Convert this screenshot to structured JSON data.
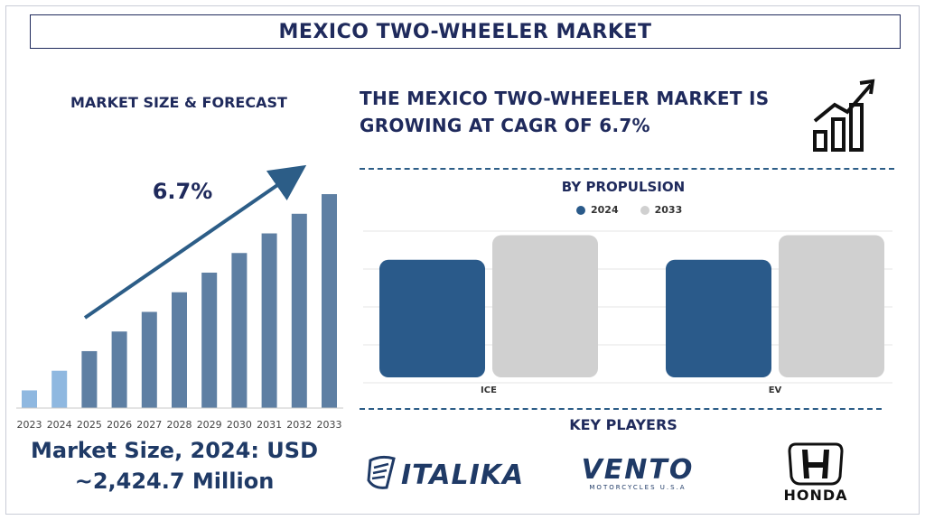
{
  "header": {
    "title": "MEXICO TWO-WHEELER MARKET"
  },
  "left_panel": {
    "subtitle": "MARKET SIZE & FORECAST",
    "cagr_label": "6.7%",
    "market_size_line1": "Market Size, 2024: USD",
    "market_size_line2": "~2,424.7 Million"
  },
  "right_panel": {
    "headline": "THE MEXICO TWO-WHEELER MARKET IS GROWING AT CAGR OF 6.7%",
    "key_players_title": "KEY PLAYERS",
    "players": [
      {
        "name": "ITALIKA"
      },
      {
        "name": "VENTO",
        "tagline": "MOTORCYCLES U.S.A"
      },
      {
        "name": "HONDA"
      }
    ]
  },
  "colors": {
    "navy": "#1f2a5c",
    "bar_forecast": "#5e7fa3",
    "bar_history": "#8fb8e0",
    "series_2024": "#2a5a8a",
    "series_2033": "#d0d0d0"
  },
  "chart_data": [
    {
      "type": "bar",
      "title": "",
      "categories": [
        "2023",
        "2024",
        "2025",
        "2026",
        "2027",
        "2028",
        "2029",
        "2030",
        "2031",
        "2032",
        "2033"
      ],
      "values": [
        9,
        19,
        29,
        39,
        49,
        59,
        69,
        79,
        89,
        99,
        109
      ],
      "historical_count": 2,
      "ylim": [
        0,
        115
      ],
      "grid": false,
      "legend": "none"
    },
    {
      "type": "bar",
      "title": "BY PROPULSION",
      "categories": [
        "ICE",
        "EV"
      ],
      "series": [
        {
          "name": "2024",
          "values": [
            62,
            62
          ]
        },
        {
          "name": "2033",
          "values": [
            75,
            75
          ]
        }
      ],
      "ylim": [
        0,
        80
      ],
      "grid": true,
      "legend": "top-center"
    }
  ]
}
